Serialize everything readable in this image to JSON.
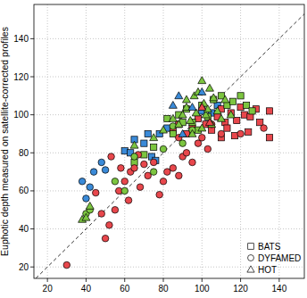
{
  "chart_data": {
    "type": "scatter",
    "y_label": "Euphotic depth measured on satellite-corrected profiles",
    "xlim": [
      13,
      153
    ],
    "ylim": [
      14,
      158
    ],
    "xticks": [
      20,
      40,
      60,
      80,
      100,
      120,
      140
    ],
    "yticks": [
      20,
      40,
      60,
      80,
      100,
      120,
      140
    ],
    "grid": true,
    "legend": "bottom-right",
    "series": [
      {
        "name": "BATS",
        "marker": "square",
        "color": "#ffffff",
        "x": [
          60,
          63,
          65,
          70,
          72,
          78,
          74,
          76,
          82,
          100,
          105,
          108,
          85,
          88,
          92,
          95,
          98,
          102,
          105,
          108,
          110,
          112,
          115,
          118,
          120,
          122,
          125,
          128,
          130,
          135,
          124,
          117,
          113,
          135,
          110,
          82,
          85,
          88,
          92,
          95,
          98,
          100,
          103,
          106,
          110,
          113,
          116,
          120,
          123,
          126,
          75,
          70,
          65,
          90
        ],
        "values": [
          81,
          80,
          87,
          85,
          90,
          90,
          78,
          76,
          93,
          102,
          101,
          105,
          92,
          95,
          90,
          93,
          98,
          95,
          92,
          99,
          103,
          96,
          101,
          97,
          104,
          100,
          99,
          103,
          96,
          102,
          91,
          89,
          93,
          88,
          88,
          98,
          90,
          100,
          103,
          96,
          92,
          105,
          99,
          108,
          110,
          105,
          107,
          110,
          105,
          102,
          83,
          79,
          75,
          96
        ],
        "colors": [
          "#3a8ad8",
          "#3a8ad8",
          "#3a8ad8",
          "#3a8ad8",
          "#3a8ad8",
          "#3a8ad8",
          "#3a8ad8",
          "#3a8ad8",
          "#3a8ad8",
          "#3a8ad8",
          "#3a8ad8",
          "#3a8ad8",
          "#e8474c",
          "#e8474c",
          "#e8474c",
          "#e8474c",
          "#e8474c",
          "#e8474c",
          "#e8474c",
          "#e8474c",
          "#e8474c",
          "#e8474c",
          "#e8474c",
          "#e8474c",
          "#e8474c",
          "#e8474c",
          "#e8474c",
          "#e8474c",
          "#e8474c",
          "#e8474c",
          "#e8474c",
          "#e8474c",
          "#e8474c",
          "#e8474c",
          "#e8474c",
          "#7cc540",
          "#7cc540",
          "#7cc540",
          "#7cc540",
          "#7cc540",
          "#7cc540",
          "#7cc540",
          "#7cc540",
          "#7cc540",
          "#7cc540",
          "#7cc540",
          "#7cc540",
          "#7cc540",
          "#7cc540",
          "#7cc540",
          "#7cc540",
          "#7cc540",
          "#7cc540",
          "#7cc540"
        ]
      },
      {
        "name": "DYFAMED",
        "marker": "circle",
        "color": "#ffffff",
        "x": [
          30,
          38,
          40,
          44,
          48,
          50,
          42,
          45,
          48,
          50,
          52,
          55,
          57,
          60,
          62,
          63,
          65,
          68,
          70,
          72,
          75,
          78,
          80,
          82,
          85,
          88,
          90,
          92,
          95,
          98,
          100,
          103,
          105,
          110,
          88,
          53,
          58,
          67,
          120,
          132,
          40,
          42,
          55,
          60,
          65,
          75,
          80,
          90,
          95,
          85
        ],
        "values": [
          21,
          65,
          56,
          70,
          75,
          71,
          62,
          59,
          48,
          35,
          42,
          50,
          60,
          65,
          55,
          70,
          72,
          62,
          74,
          68,
          75,
          58,
          65,
          70,
          72,
          68,
          78,
          80,
          75,
          85,
          88,
          82,
          95,
          90,
          88,
          78,
          72,
          79,
          90,
          93,
          48,
          50,
          65,
          60,
          78,
          70,
          82,
          85,
          92,
          94
        ],
        "colors": [
          "#e8474c",
          "#3a8ad8",
          "#3a8ad8",
          "#3a8ad8",
          "#3a8ad8",
          "#3a8ad8",
          "#3a8ad8",
          "#e8474c",
          "#e8474c",
          "#e8474c",
          "#e8474c",
          "#e8474c",
          "#e8474c",
          "#e8474c",
          "#e8474c",
          "#e8474c",
          "#e8474c",
          "#e8474c",
          "#e8474c",
          "#e8474c",
          "#e8474c",
          "#e8474c",
          "#e8474c",
          "#e8474c",
          "#e8474c",
          "#e8474c",
          "#e8474c",
          "#e8474c",
          "#e8474c",
          "#e8474c",
          "#e8474c",
          "#e8474c",
          "#e8474c",
          "#e8474c",
          "#e8474c",
          "#e8474c",
          "#e8474c",
          "#e8474c",
          "#e8474c",
          "#e8474c",
          "#7cc540",
          "#7cc540",
          "#7cc540",
          "#7cc540",
          "#7cc540",
          "#7cc540",
          "#7cc540",
          "#7cc540",
          "#7cc540",
          "#7cc540"
        ]
      },
      {
        "name": "HOT",
        "marker": "triangle",
        "color": "#ffffff",
        "x": [
          38,
          40,
          42,
          65,
          75,
          80,
          85,
          88,
          90,
          92,
          94,
          96,
          98,
          100,
          101,
          102,
          104,
          105,
          106,
          108,
          110,
          112,
          95,
          100,
          103,
          97,
          115,
          92,
          88,
          95,
          100,
          85,
          90,
          100,
          104
        ],
        "values": [
          45,
          46,
          52,
          84,
          88,
          92,
          98,
          95,
          100,
          104,
          97,
          110,
          112,
          118,
          106,
          100,
          114,
          95,
          109,
          102,
          98,
          108,
          90,
          93,
          103,
          101,
          100,
          108,
          110,
          104,
          112,
          105,
          90,
          104,
          96
        ],
        "colors": [
          "#7cc540",
          "#7cc540",
          "#7cc540",
          "#7cc540",
          "#7cc540",
          "#7cc540",
          "#7cc540",
          "#7cc540",
          "#7cc540",
          "#7cc540",
          "#7cc540",
          "#7cc540",
          "#7cc540",
          "#7cc540",
          "#7cc540",
          "#7cc540",
          "#7cc540",
          "#7cc540",
          "#7cc540",
          "#7cc540",
          "#7cc540",
          "#7cc540",
          "#7cc540",
          "#7cc540",
          "#7cc540",
          "#7cc540",
          "#7cc540",
          "#7cc540",
          "#3a8ad8",
          "#3a8ad8",
          "#3a8ad8",
          "#3a8ad8",
          "#3a8ad8",
          "#e8474c",
          "#e8474c"
        ]
      }
    ]
  }
}
